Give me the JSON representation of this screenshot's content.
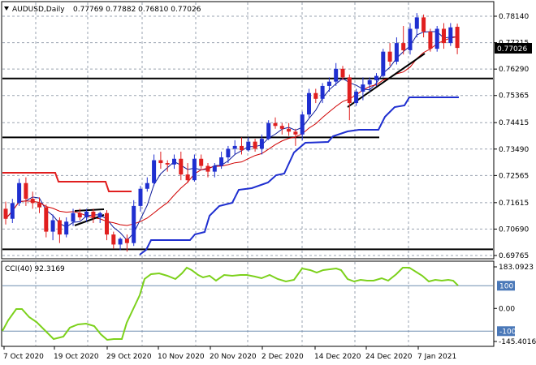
{
  "header": {
    "symbol": "AUDUSD,Daily",
    "ohlc": "0.77769 0.77882 0.76810 0.77026",
    "collapse_icon": "triangle-down-icon"
  },
  "price_axis": {
    "ticks": [
      "0.78140",
      "0.77215",
      "0.76290",
      "0.75365",
      "0.74415",
      "0.73490",
      "0.72565",
      "0.71615",
      "0.70690",
      "0.69765"
    ],
    "current": "0.77026",
    "current_bg": "#000000"
  },
  "cci": {
    "label": "CCI(40) 92.3169",
    "ticks": [
      "183.0923",
      "100",
      "0.00",
      "-100",
      "-145.4016"
    ],
    "line_color": "#7cd11c"
  },
  "time_axis": {
    "labels": [
      "7 Oct 2020",
      "19 Oct 2020",
      "29 Oct 2020",
      "10 Nov 2020",
      "20 Nov 2020",
      "2 Dec 2020",
      "14 Dec 2020",
      "24 Dec 2020",
      "7 Jan 2021"
    ]
  },
  "colors": {
    "bull": "#1f2fd0",
    "bear": "#e01f1f",
    "ma_fast": "#0d1a99",
    "ma_slow": "#d00000",
    "trail_up": "#1f2fd0",
    "trail_down": "#e01f1f",
    "grid": "#9aa3b0",
    "level_lines": "#000000"
  },
  "chart_data": {
    "type": "candlestick",
    "levels": [
      0.7596,
      0.739,
      0.6998
    ],
    "candles": [
      [
        0.714,
        0.7165,
        0.7085,
        0.7105
      ],
      [
        0.7105,
        0.7175,
        0.709,
        0.716
      ],
      [
        0.716,
        0.7245,
        0.715,
        0.723
      ],
      [
        0.723,
        0.725,
        0.715,
        0.7175
      ],
      [
        0.7175,
        0.72,
        0.714,
        0.716
      ],
      [
        0.716,
        0.718,
        0.7125,
        0.7145
      ],
      [
        0.7145,
        0.7155,
        0.704,
        0.706
      ],
      [
        0.706,
        0.712,
        0.703,
        0.71
      ],
      [
        0.71,
        0.711,
        0.702,
        0.705
      ],
      [
        0.705,
        0.711,
        0.704,
        0.7095
      ],
      [
        0.7095,
        0.714,
        0.708,
        0.7125
      ],
      [
        0.7125,
        0.714,
        0.71,
        0.711
      ],
      [
        0.711,
        0.714,
        0.7095,
        0.713
      ],
      [
        0.713,
        0.714,
        0.709,
        0.711
      ],
      [
        0.711,
        0.713,
        0.709,
        0.7125
      ],
      [
        0.7125,
        0.7135,
        0.703,
        0.705
      ],
      [
        0.705,
        0.706,
        0.7,
        0.7015
      ],
      [
        0.7015,
        0.704,
        0.6995,
        0.7035
      ],
      [
        0.7035,
        0.705,
        0.699,
        0.702
      ],
      [
        0.702,
        0.717,
        0.701,
        0.715
      ],
      [
        0.715,
        0.722,
        0.713,
        0.721
      ],
      [
        0.721,
        0.725,
        0.72,
        0.723
      ],
      [
        0.723,
        0.733,
        0.722,
        0.731
      ],
      [
        0.731,
        0.734,
        0.728,
        0.73
      ],
      [
        0.73,
        0.731,
        0.727,
        0.7295
      ],
      [
        0.7295,
        0.733,
        0.728,
        0.7315
      ],
      [
        0.7315,
        0.734,
        0.724,
        0.726
      ],
      [
        0.726,
        0.73,
        0.723,
        0.724
      ],
      [
        0.724,
        0.733,
        0.7235,
        0.7315
      ],
      [
        0.7315,
        0.733,
        0.728,
        0.729
      ],
      [
        0.729,
        0.73,
        0.725,
        0.727
      ],
      [
        0.727,
        0.73,
        0.725,
        0.729
      ],
      [
        0.729,
        0.734,
        0.728,
        0.732
      ],
      [
        0.732,
        0.736,
        0.73,
        0.735
      ],
      [
        0.735,
        0.738,
        0.733,
        0.736
      ],
      [
        0.736,
        0.739,
        0.733,
        0.7345
      ],
      [
        0.7345,
        0.739,
        0.734,
        0.7375
      ],
      [
        0.7375,
        0.7385,
        0.734,
        0.735
      ],
      [
        0.735,
        0.74,
        0.733,
        0.7385
      ],
      [
        0.7385,
        0.745,
        0.738,
        0.744
      ],
      [
        0.744,
        0.746,
        0.742,
        0.743
      ],
      [
        0.743,
        0.744,
        0.74,
        0.742
      ],
      [
        0.742,
        0.744,
        0.7395,
        0.741
      ],
      [
        0.741,
        0.742,
        0.736,
        0.74
      ],
      [
        0.74,
        0.748,
        0.738,
        0.747
      ],
      [
        0.747,
        0.756,
        0.746,
        0.7545
      ],
      [
        0.7545,
        0.756,
        0.751,
        0.7525
      ],
      [
        0.7525,
        0.758,
        0.751,
        0.757
      ],
      [
        0.757,
        0.76,
        0.755,
        0.7585
      ],
      [
        0.7585,
        0.765,
        0.757,
        0.763
      ],
      [
        0.763,
        0.764,
        0.759,
        0.76
      ],
      [
        0.76,
        0.761,
        0.745,
        0.751
      ],
      [
        0.751,
        0.756,
        0.75,
        0.755
      ],
      [
        0.755,
        0.76,
        0.752,
        0.7575
      ],
      [
        0.7575,
        0.76,
        0.755,
        0.759
      ],
      [
        0.759,
        0.7615,
        0.757,
        0.7605
      ],
      [
        0.7605,
        0.77,
        0.76,
        0.769
      ],
      [
        0.769,
        0.772,
        0.764,
        0.7655
      ],
      [
        0.7655,
        0.774,
        0.7645,
        0.772
      ],
      [
        0.772,
        0.778,
        0.768,
        0.7695
      ],
      [
        0.7695,
        0.779,
        0.768,
        0.777
      ],
      [
        0.777,
        0.7825,
        0.774,
        0.781
      ],
      [
        0.781,
        0.782,
        0.774,
        0.776
      ],
      [
        0.776,
        0.777,
        0.769,
        0.77
      ],
      [
        0.77,
        0.778,
        0.769,
        0.777
      ],
      [
        0.777,
        0.779,
        0.77,
        0.772
      ],
      [
        0.772,
        0.779,
        0.771,
        0.7775
      ],
      [
        0.7777,
        0.7788,
        0.7681,
        0.7703
      ]
    ]
  }
}
